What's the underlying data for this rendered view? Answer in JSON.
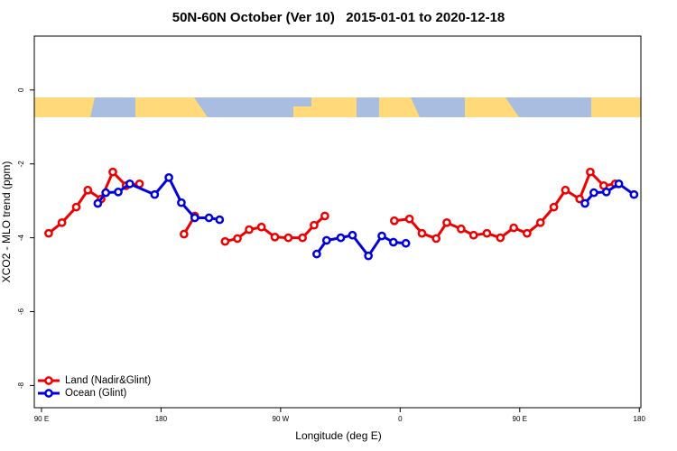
{
  "chart_data": {
    "type": "line",
    "title": "50N-60N October (Ver 10)   2015-01-01 to 2020-12-18",
    "x_label": "Longitude (deg E)",
    "y_label": "XCO2 - MLO trend (ppm)",
    "xlim": [
      84.6,
      541.2
    ],
    "ylim": [
      -8.6,
      1.46
    ],
    "xticks": [
      {
        "value": 90,
        "label": "90 E"
      },
      180,
      {
        "value": 270,
        "label": "90 W"
      },
      {
        "value": 360,
        "label": "0"
      },
      {
        "value": 450,
        "label": "90 E"
      },
      {
        "value": 540,
        "label": "180"
      }
    ],
    "yticks": [
      0,
      -2,
      -4,
      -6,
      -8
    ],
    "legend": "bottom-left",
    "series": [
      {
        "name": "Land (Nadir&Glint)",
        "color": "#ee0000",
        "x": [
          95.4,
          105.4,
          116.2,
          124.9,
          134.9,
          143.7,
          153.7,
          163.8,
          null,
          197.3,
          205.4,
          null,
          228.2,
          237.5,
          246.3,
          255.6,
          265.7,
          275.8,
          286.5,
          295.2,
          303.3,
          null,
          355.6,
          367.0,
          376.4,
          387.1,
          395.1,
          405.9,
          415.3,
          425.3,
          435.4,
          445.5,
          455.5,
          465.6,
          475.7,
          484.4,
          495.1,
          503.1,
          513.2,
          521.9
        ],
        "values": [
          -3.88,
          -3.59,
          -3.17,
          -2.71,
          -2.95,
          -2.22,
          -2.59,
          -2.54,
          null,
          -3.9,
          -3.41,
          null,
          -4.1,
          -4.02,
          -3.78,
          -3.71,
          -3.98,
          -4.0,
          -4.0,
          -3.66,
          -3.41,
          null,
          -3.54,
          -3.49,
          -3.88,
          -4.02,
          -3.59,
          -3.76,
          -3.93,
          -3.88,
          -4.0,
          -3.73,
          -3.88,
          -3.59,
          -3.17,
          -2.71,
          -2.95,
          -2.22,
          -2.59,
          -2.54
        ]
      },
      {
        "name": "Ocean (Glint)",
        "color": "#0000dd",
        "x": [
          132.4,
          138.4,
          147.8,
          156.5,
          175.2,
          185.9,
          195.3,
          205.4,
          216.1,
          224.1,
          null,
          297.2,
          304.6,
          315.3,
          324.1,
          336.1,
          346.2,
          354.9,
          364.3,
          null,
          499.1,
          505.8,
          515.2,
          524.6,
          536.0
        ],
        "values": [
          -3.07,
          -2.78,
          -2.76,
          -2.54,
          -2.83,
          -2.37,
          -3.05,
          -3.46,
          -3.46,
          -3.51,
          null,
          -4.44,
          -4.07,
          -4.0,
          -3.93,
          -4.49,
          -3.95,
          -4.12,
          -4.15,
          null,
          -3.07,
          -2.78,
          -2.76,
          -2.54,
          -2.83
        ]
      }
    ]
  }
}
